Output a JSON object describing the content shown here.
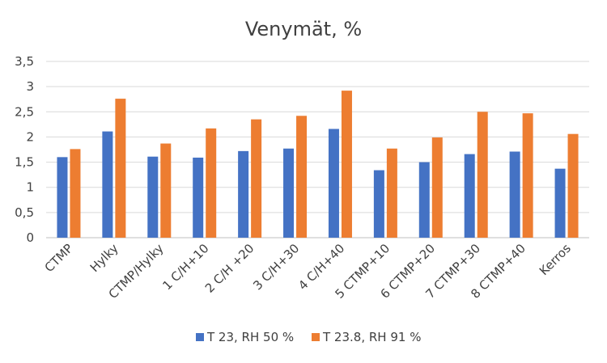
{
  "chart_data": {
    "type": "bar",
    "title": "Venymät, %",
    "xlabel": "",
    "ylabel": "",
    "ylim": [
      0,
      3.5
    ],
    "y_ticks": [
      "0",
      "0,5",
      "1",
      "1,5",
      "2",
      "2,5",
      "3",
      "3,5"
    ],
    "y_tick_values": [
      0,
      0.5,
      1,
      1.5,
      2,
      2.5,
      3,
      3.5
    ],
    "grid": true,
    "legend_position": "bottom",
    "categories": [
      "CTMP",
      "Hylky",
      "CTMP/Hylky",
      "1 C/H+10",
      "2 C/H +20",
      "3 C/H+30",
      "4 C/H+40",
      "5 CTMP+10",
      "6 CTMP+20",
      "7 CTMP+30",
      "8 CTMP+40",
      "Kerros"
    ],
    "series": [
      {
        "name": "T 23, RH 50 %",
        "color": "#4472c4",
        "values": [
          1.6,
          2.11,
          1.61,
          1.59,
          1.72,
          1.77,
          2.16,
          1.34,
          1.5,
          1.66,
          1.71,
          1.37
        ]
      },
      {
        "name": "T 23.8, RH 91 %",
        "color": "#ed7d31",
        "values": [
          1.76,
          2.76,
          1.87,
          2.17,
          2.35,
          2.42,
          2.92,
          1.77,
          1.99,
          2.5,
          2.47,
          2.06
        ]
      }
    ]
  }
}
